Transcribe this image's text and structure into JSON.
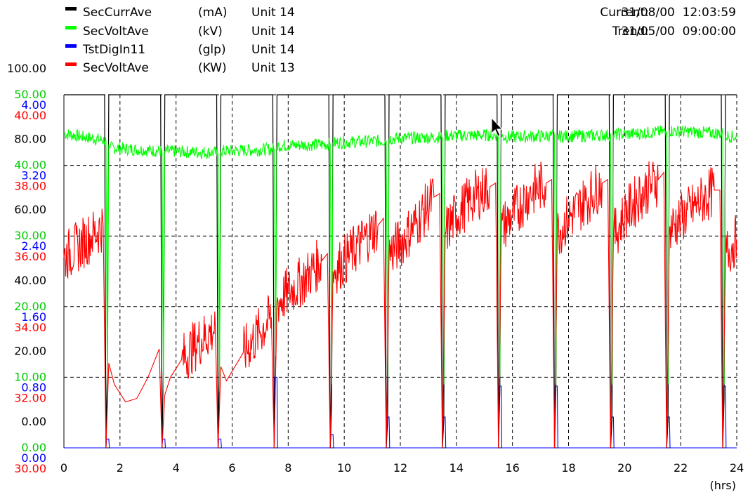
{
  "legend": [
    {
      "name": "SecCurrAve",
      "unit": "(mA)",
      "source": "Unit 14",
      "color": "#000000"
    },
    {
      "name": "SecVoltAve",
      "unit": "(kV)",
      "source": "Unit 14",
      "color": "#00ff00"
    },
    {
      "name": "TstDigIn11",
      "unit": "(glp)",
      "source": "Unit 14",
      "color": "#0000ff"
    },
    {
      "name": "SecVoltAve",
      "unit": "(KW)",
      "source": "Unit 13",
      "color": "#ff0000"
    }
  ],
  "header": {
    "current_label": "Current:",
    "current_value": "31/08/00  12:03:59",
    "trend_label": "Trend:",
    "trend_value": "31/05/00  09:00:00"
  },
  "chart_data": {
    "type": "line",
    "x_unit": "(hrs)",
    "xlim": [
      0,
      24
    ],
    "x_ticks": [
      "0",
      "2",
      "4",
      "6",
      "8",
      "10",
      "12",
      "14",
      "16",
      "18",
      "20",
      "22",
      "24"
    ],
    "grid": true,
    "y_axes": [
      {
        "series": "SecCurrAve (mA)",
        "color": "#000000",
        "range": [
          0,
          100
        ],
        "ticks": [
          "0.00",
          "20.00",
          "40.00",
          "60.00",
          "80.00",
          "100.00"
        ]
      },
      {
        "series": "SecVoltAve (kV)",
        "color": "#00cc00",
        "range": [
          0,
          50
        ],
        "ticks": [
          "0.00",
          "10.00",
          "20.00",
          "30.00",
          "40.00",
          "50.00"
        ]
      },
      {
        "series": "TstDigIn11 (glp)",
        "color": "#0000ff",
        "range": [
          0,
          4
        ],
        "ticks": [
          "0.00",
          "0.80",
          "1.60",
          "2.40",
          "3.20",
          "4.00"
        ]
      },
      {
        "series": "SecVoltAve (KW)",
        "color": "#ff0000",
        "range": [
          30,
          40
        ],
        "ticks": [
          "30.00",
          "32.00",
          "34.00",
          "36.00",
          "38.00",
          "40.00"
        ]
      }
    ],
    "cycle_starts_hrs": [
      1.5,
      3.5,
      5.5,
      7.5,
      9.5,
      11.5,
      13.5,
      15.5,
      17.5,
      19.5,
      21.5,
      23.5
    ],
    "series": [
      {
        "name": "SecCurrAve",
        "axis": 0,
        "color": "#000000",
        "x": [
          0,
          1.45,
          1.5,
          1.55,
          1.6,
          3.45,
          3.5,
          3.55,
          3.6,
          5.45,
          5.5,
          5.55,
          5.6,
          7.45,
          7.5,
          7.55,
          7.6,
          9.45,
          9.5,
          9.55,
          9.6,
          11.45,
          11.5,
          11.55,
          11.6,
          13.45,
          13.5,
          13.55,
          13.6,
          15.45,
          15.5,
          15.55,
          15.6,
          17.45,
          17.5,
          17.55,
          17.6,
          19.45,
          19.5,
          19.55,
          19.6,
          21.45,
          21.5,
          21.55,
          21.6,
          23.45,
          23.5,
          23.55,
          23.6,
          24
        ],
        "y": [
          100,
          100,
          0,
          24,
          100,
          100,
          0,
          24,
          100,
          100,
          0,
          24,
          100,
          100,
          0,
          24,
          100,
          100,
          0,
          12,
          100,
          100,
          0,
          8,
          100,
          100,
          0,
          8,
          100,
          100,
          0,
          16,
          100,
          100,
          0,
          16,
          100,
          100,
          0,
          8,
          100,
          100,
          0,
          8,
          100,
          100,
          0,
          14,
          100,
          100
        ]
      },
      {
        "name": "SecVoltAve",
        "axis": 1,
        "color": "#00ff00",
        "x": [
          0,
          1.5,
          1.55,
          1.6,
          1.65,
          3.5,
          3.55,
          3.6,
          5.5,
          5.55,
          5.6,
          7.5,
          7.55,
          7.6,
          9.5,
          9.55,
          9.6,
          11.5,
          11.55,
          11.6,
          13.5,
          13.55,
          13.6,
          15.5,
          15.55,
          15.6,
          17.5,
          17.55,
          17.6,
          19.5,
          19.55,
          19.6,
          21.5,
          21.55,
          21.6,
          23.5,
          23.55,
          23.6,
          24
        ],
        "y": [
          44.5,
          43.5,
          7,
          42.8,
          42.5,
          42.0,
          8,
          42.0,
          41.8,
          8,
          42.0,
          42.3,
          13,
          42.8,
          43.0,
          9,
          43.2,
          43.5,
          10,
          43.8,
          44.0,
          9,
          44.2,
          44.3,
          10,
          44.0,
          44.2,
          9,
          44.1,
          44.3,
          9,
          44.3,
          44.8,
          9,
          44.9,
          44.5,
          9,
          44.2,
          44.0
        ]
      },
      {
        "name": "TstDigIn11",
        "axis": 2,
        "color": "#0000ff",
        "x": [
          0,
          1.5,
          1.52,
          1.6,
          1.62,
          3.5,
          3.52,
          3.6,
          3.62,
          5.5,
          5.52,
          5.6,
          5.62,
          7.5,
          7.52,
          7.6,
          7.62,
          9.5,
          9.52,
          9.6,
          9.62,
          11.5,
          11.52,
          11.6,
          11.62,
          13.5,
          13.52,
          13.6,
          13.62,
          15.5,
          15.52,
          15.6,
          15.62,
          17.5,
          17.52,
          17.6,
          17.62,
          19.5,
          19.52,
          19.6,
          19.62,
          21.5,
          21.52,
          21.6,
          21.62,
          23.5,
          23.52,
          23.6,
          23.62,
          24
        ],
        "y": [
          0,
          0,
          0.1,
          0.1,
          0,
          0,
          0.1,
          0.1,
          0,
          0,
          0.1,
          0.1,
          0,
          0,
          0.8,
          0.8,
          0,
          0,
          0.15,
          0.15,
          0,
          0,
          0.35,
          0.35,
          0,
          0,
          0.35,
          0.35,
          0,
          0,
          0.7,
          0.7,
          0,
          0,
          0.7,
          0.7,
          0,
          0,
          0.35,
          0.35,
          0,
          0,
          0.35,
          0.35,
          0,
          0,
          0.7,
          0.7,
          0,
          0
        ]
      },
      {
        "name": "SecVoltAve",
        "axis": 3,
        "color": "#ff0000",
        "x": [
          0,
          0.5,
          1.0,
          1.4,
          1.5,
          1.6,
          1.8,
          2.2,
          2.6,
          3.0,
          3.4,
          3.5,
          3.6,
          3.8,
          4.2,
          4.8,
          5.4,
          5.5,
          5.6,
          5.8,
          6.4,
          7.0,
          7.4,
          7.5,
          7.6,
          8.0,
          8.6,
          9.2,
          9.4,
          9.5,
          9.6,
          10.0,
          10.6,
          11.2,
          11.4,
          11.5,
          11.6,
          12.0,
          12.6,
          13.2,
          13.4,
          13.5,
          13.6,
          14.0,
          14.6,
          15.2,
          15.4,
          15.5,
          15.6,
          16.0,
          16.6,
          17.2,
          17.4,
          17.5,
          17.6,
          18.0,
          18.6,
          19.2,
          19.4,
          19.5,
          19.6,
          20.0,
          20.6,
          21.2,
          21.4,
          21.5,
          21.6,
          22.0,
          22.6,
          23.2,
          23.4,
          23.5,
          23.6,
          24
        ],
        "y": [
          35.4,
          35.7,
          36.0,
          36.3,
          30,
          32.4,
          31.8,
          31.3,
          31.4,
          32.0,
          32.8,
          30,
          31.5,
          32.0,
          32.5,
          33.0,
          33.4,
          30,
          32.3,
          31.9,
          32.7,
          33.3,
          33.7,
          30,
          34.1,
          34.4,
          34.8,
          35.3,
          35.5,
          30,
          35.0,
          35.3,
          35.8,
          36.3,
          36.5,
          30,
          35.5,
          35.8,
          36.4,
          37.1,
          37.2,
          30,
          36.1,
          36.6,
          37.1,
          37.4,
          37.5,
          30,
          36.2,
          36.6,
          37.2,
          37.5,
          37.6,
          30,
          36.1,
          36.5,
          37.0,
          37.5,
          37.6,
          30,
          36.0,
          36.6,
          37.2,
          37.6,
          37.8,
          30,
          36.2,
          36.5,
          36.9,
          37.3,
          37.3,
          30,
          35.5,
          35.9
        ]
      }
    ]
  }
}
